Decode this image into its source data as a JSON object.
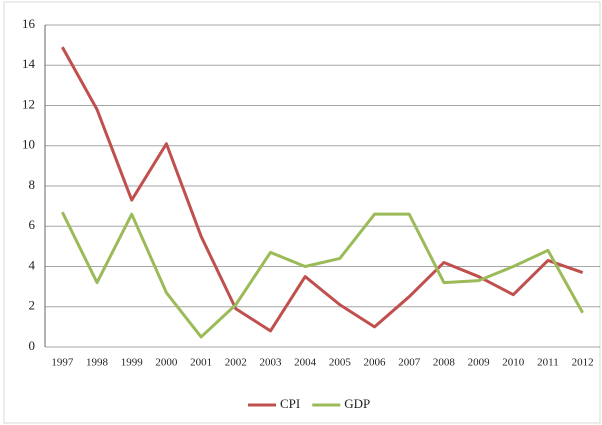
{
  "chart_data": {
    "type": "line",
    "categories": [
      "1997",
      "1998",
      "1999",
      "2000",
      "2001",
      "2002",
      "2003",
      "2004",
      "2005",
      "2006",
      "2007",
      "2008",
      "2009",
      "2010",
      "2011",
      "2012"
    ],
    "series": [
      {
        "name": "CPI",
        "color": "#c0504d",
        "values": [
          14.9,
          11.8,
          7.3,
          10.1,
          5.5,
          1.9,
          0.8,
          3.5,
          2.1,
          1.0,
          2.5,
          4.2,
          3.5,
          2.6,
          4.3,
          3.7
        ]
      },
      {
        "name": "GDP",
        "color": "#9bbb59",
        "values": [
          6.7,
          3.2,
          6.6,
          2.7,
          0.5,
          2.1,
          4.7,
          4.0,
          4.4,
          6.6,
          6.6,
          3.2,
          3.3,
          4.0,
          4.8,
          1.7
        ]
      }
    ],
    "ylim": [
      0,
      16
    ],
    "yticks": [
      0,
      2,
      4,
      6,
      8,
      10,
      12,
      14,
      16
    ],
    "grid": true,
    "legend": "bottom"
  }
}
